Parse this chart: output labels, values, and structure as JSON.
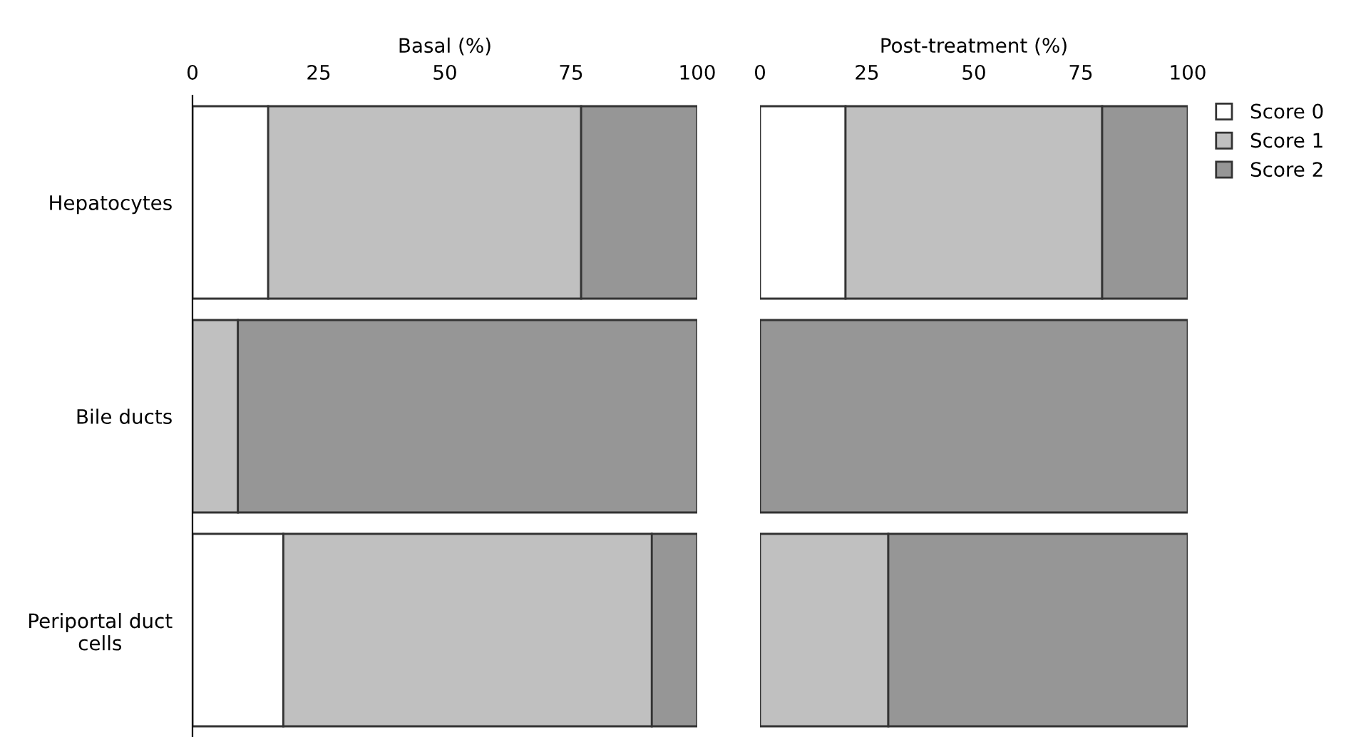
{
  "chart_data": [
    {
      "type": "bar",
      "orientation": "horizontal",
      "stacked": true,
      "xlabel": "Basal (%)",
      "categories": [
        "Hepatocytes",
        "Bile ducts",
        "Periportal duct\ncells"
      ],
      "xlim": [
        0,
        100
      ],
      "xticks": [
        0,
        25,
        50,
        75,
        100
      ],
      "grid": false,
      "legend": false,
      "series": [
        {
          "color": "#ffffff",
          "values": [
            15,
            0,
            18
          ]
        },
        {
          "color": "#c0c0c0",
          "values": [
            62,
            9,
            73
          ]
        },
        {
          "color": "#969696",
          "values": [
            23,
            91,
            9
          ]
        }
      ]
    },
    {
      "type": "bar",
      "orientation": "horizontal",
      "stacked": true,
      "xlabel": "Post-treatment (%)",
      "categories": [
        null,
        null,
        null
      ],
      "xlim": [
        0,
        100
      ],
      "xticks": [
        0,
        25,
        50,
        75,
        100
      ],
      "grid": false,
      "legend": "top right",
      "tick_labels": "x",
      "series": [
        {
          "name": "Score 0",
          "color": "#ffffff",
          "values": [
            20,
            0,
            0
          ]
        },
        {
          "name": "Score 1",
          "color": "#c0c0c0",
          "values": [
            60,
            0,
            30
          ]
        },
        {
          "name": "Score 2",
          "color": "#969696",
          "values": [
            20,
            100,
            70
          ]
        }
      ]
    }
  ]
}
